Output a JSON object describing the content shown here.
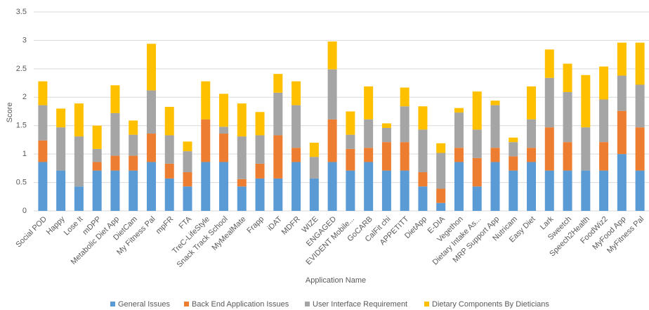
{
  "chart_data": {
    "type": "stacked_bar",
    "x_label": "Application Name",
    "y_label": "Score",
    "categories": [
      "Social POD",
      "Happy",
      "Lose It",
      "mDPP",
      "Metabolic Diet App",
      "DietCam",
      "My Fitness Pal",
      "mpFR",
      "FTA",
      "TreC-LifeStyle",
      "Snack Track School",
      "MyMealMate",
      "Frapp",
      "iDAT",
      "MDFR",
      "WIZE",
      "ENGAGED",
      "EVIDENT Mobile...",
      "GoCARB",
      "CalFit chi",
      "APPETITT",
      "DietApp",
      "E-DIA",
      "Vegethon",
      "Dietary Intake As...",
      "MRP Support App",
      "Nutricam",
      "Easy Diet",
      "Lark",
      "Sweetch",
      "Speech2Health",
      "FoodWiz2",
      "MyFood App",
      "MyFitness Pal"
    ],
    "series": [
      {
        "name": "General Issues",
        "color": "#5b9bd5",
        "values": [
          0.86,
          0.71,
          0.43,
          0.71,
          0.71,
          0.71,
          0.86,
          0.57,
          0.43,
          0.86,
          0.86,
          0.43,
          0.57,
          0.57,
          0.86,
          0.57,
          0.86,
          0.71,
          0.86,
          0.71,
          0.71,
          0.43,
          0.14,
          0.86,
          0.43,
          0.86,
          0.71,
          0.86,
          0.71,
          0.71,
          0.71,
          0.71,
          1.0,
          0.71
        ]
      },
      {
        "name": "Back End Application Issues",
        "color": "#ed7d31",
        "values": [
          0.38,
          0,
          0,
          0.15,
          0.26,
          0.26,
          0.5,
          0.26,
          0.25,
          0.75,
          0.5,
          0.13,
          0.26,
          0.76,
          0.25,
          0,
          0.75,
          0.38,
          0.25,
          0.5,
          0.5,
          0.25,
          0.25,
          0.25,
          0.5,
          0.25,
          0.25,
          0.25,
          0.76,
          0.5,
          0,
          0.5,
          0.76,
          0.76
        ]
      },
      {
        "name": "User Interface Requirement",
        "color": "#a5a5a5",
        "values": [
          0.62,
          0.76,
          0.88,
          0.23,
          0.75,
          0.37,
          0.76,
          0.5,
          0.37,
          0,
          0.12,
          0.75,
          0.5,
          0.75,
          0.75,
          0.38,
          0.88,
          0.25,
          0.5,
          0.25,
          0.63,
          0.75,
          0.63,
          0.62,
          0.5,
          0.75,
          0.25,
          0.5,
          0.87,
          0.88,
          0.76,
          0.75,
          0.62,
          0.75
        ]
      },
      {
        "name": "Dietary Components By Dieticians",
        "color": "#ffc000",
        "values": [
          0.42,
          0.33,
          0.58,
          0.41,
          0.49,
          0.25,
          0.82,
          0.5,
          0.17,
          0.67,
          0.58,
          0.58,
          0.41,
          0.33,
          0.42,
          0.25,
          0.49,
          0.41,
          0.58,
          0.08,
          0.33,
          0.41,
          0.17,
          0.08,
          0.67,
          0.08,
          0.08,
          0.58,
          0.5,
          0.5,
          0.92,
          0.58,
          0.58,
          0.74
        ]
      }
    ],
    "ylim": [
      0,
      3.5
    ],
    "yticks": [
      0,
      0.5,
      1,
      1.5,
      2,
      2.5,
      3,
      3.5
    ],
    "grid": true
  }
}
